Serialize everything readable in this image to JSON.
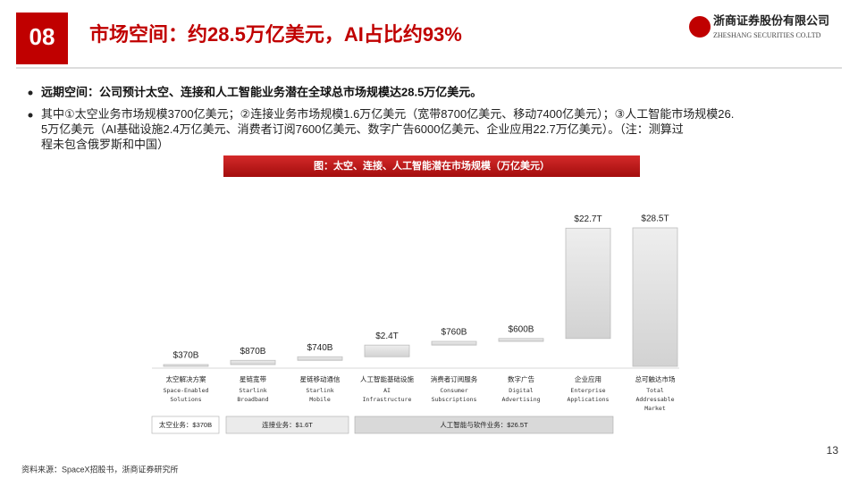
{
  "header": {
    "number": "08",
    "title": "市场空间：约28.5万亿美元，AI占比约93%",
    "company": "浙商证券股份有限公司",
    "company_en": "ZHESHANG SECURITIES CO.LTD"
  },
  "bullets": [
    "远期空间：公司预计太空、连接和人工智能业务潜在全球总市场规模达28.5万亿美元。",
    "其中①太空业务市场规模3700亿美元；②连接业务市场规模1.6万亿美元（宽带8700亿美元、移动7400亿美元）；③人工智能市场规模26.5万亿美元（AI基础设施2.4万亿美元、消费者订阅7600亿美元、数字广告6000亿美元、企业应用22.7万亿美元）。（注：测算过程未包含俄罗斯和中国）"
  ],
  "chart_data": {
    "type": "waterfall",
    "title": "图：太空、连接、人工智能潜在市场规模（万亿美元）",
    "categories": [
      "太空解决方案",
      "星链宽带",
      "星链移动通信",
      "人工智能基础设施",
      "消费者订阅服务",
      "数字广告",
      "企业应用",
      "总可触达市场"
    ],
    "category_subtitles": [
      [
        "Space-Enabled",
        "Solutions"
      ],
      [
        "Starlink",
        "Broadband"
      ],
      [
        "Starlink",
        "Mobile"
      ],
      [
        "AI",
        "Infrastructure"
      ],
      [
        "Consumer",
        "Subscriptions"
      ],
      [
        "Digital",
        "Advertising"
      ],
      [
        "Enterprise",
        "Applications"
      ],
      [
        "Total",
        "Addressable",
        "Market"
      ]
    ],
    "values": [
      0.37,
      0.87,
      0.74,
      2.4,
      0.76,
      0.6,
      22.7,
      28.5
    ],
    "value_labels": [
      "$370B",
      "$870B",
      "$740B",
      "$2.4T",
      "$760B",
      "$600B",
      "$22.7T",
      "$28.5T"
    ],
    "color": "#dcdcdc",
    "groups": [
      "太空业务：$370B",
      "连接业务：$1.6T",
      "人工智能与软件业务：$26.5T"
    ]
  },
  "footer": {
    "source": "资料来源：SpaceX招股书，浙商证券研究所",
    "page": "13"
  }
}
